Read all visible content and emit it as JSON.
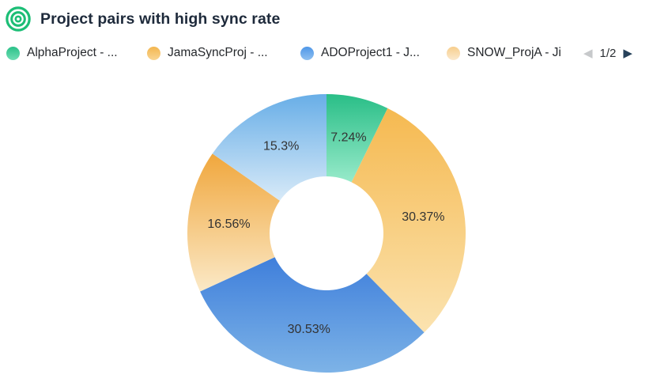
{
  "header": {
    "title": "Project pairs with high sync rate",
    "icon": "target-icon",
    "icon_color": "#1CBE76"
  },
  "legend": {
    "items": [
      {
        "label": "AlphaProject - ...",
        "color": "#2BC189",
        "color_light": "#6FDDB4"
      },
      {
        "label": "JamaSyncProj - ...",
        "color": "#F3B64F",
        "color_light": "#F9D592"
      },
      {
        "label": "ADOProject1 - J...",
        "color": "#4F97E8",
        "color_light": "#8FC0F0"
      },
      {
        "label": "SNOW_ProjA - Ji",
        "color": "#F7CE8D",
        "color_light": "#FBE9CD"
      }
    ],
    "pagination": {
      "current": "1/2",
      "prev_icon": "◀",
      "next_icon": "▶",
      "prev_color": "#C7C9CB",
      "next_color": "#26415A",
      "prev_enabled": false,
      "next_enabled": true
    }
  },
  "chart_data": {
    "type": "pie",
    "subtype": "donut",
    "title": "Project pairs with high sync rate",
    "unit": "%",
    "start_angle_deg": 0,
    "clockwise": true,
    "legend_position": "top",
    "label_color": "#333333",
    "slices": [
      {
        "name": "AlphaProject - ...",
        "value": 7.24,
        "data_label": "7.24%",
        "color": "#29BE87",
        "color_inner": "#98EACA"
      },
      {
        "name": "JamaSyncProj - ...",
        "value": 30.37,
        "data_label": "30.37%",
        "color": "#F5B950",
        "color_inner": "#FBE3B0"
      },
      {
        "name": "ADOProject1 - J...",
        "value": 30.53,
        "data_label": "30.53%",
        "color": "#3F7FDB",
        "color_inner": "#7DB3E7"
      },
      {
        "name": "SNOW_ProjA - Ji",
        "value": 16.56,
        "data_label": "16.56%",
        "color": "#F0A73D",
        "color_inner": "#FBE9C7"
      },
      {
        "name": "",
        "value": 15.3,
        "data_label": "15.3%",
        "color": "#68AEE7",
        "color_inner": "#D8EAF8"
      }
    ]
  }
}
